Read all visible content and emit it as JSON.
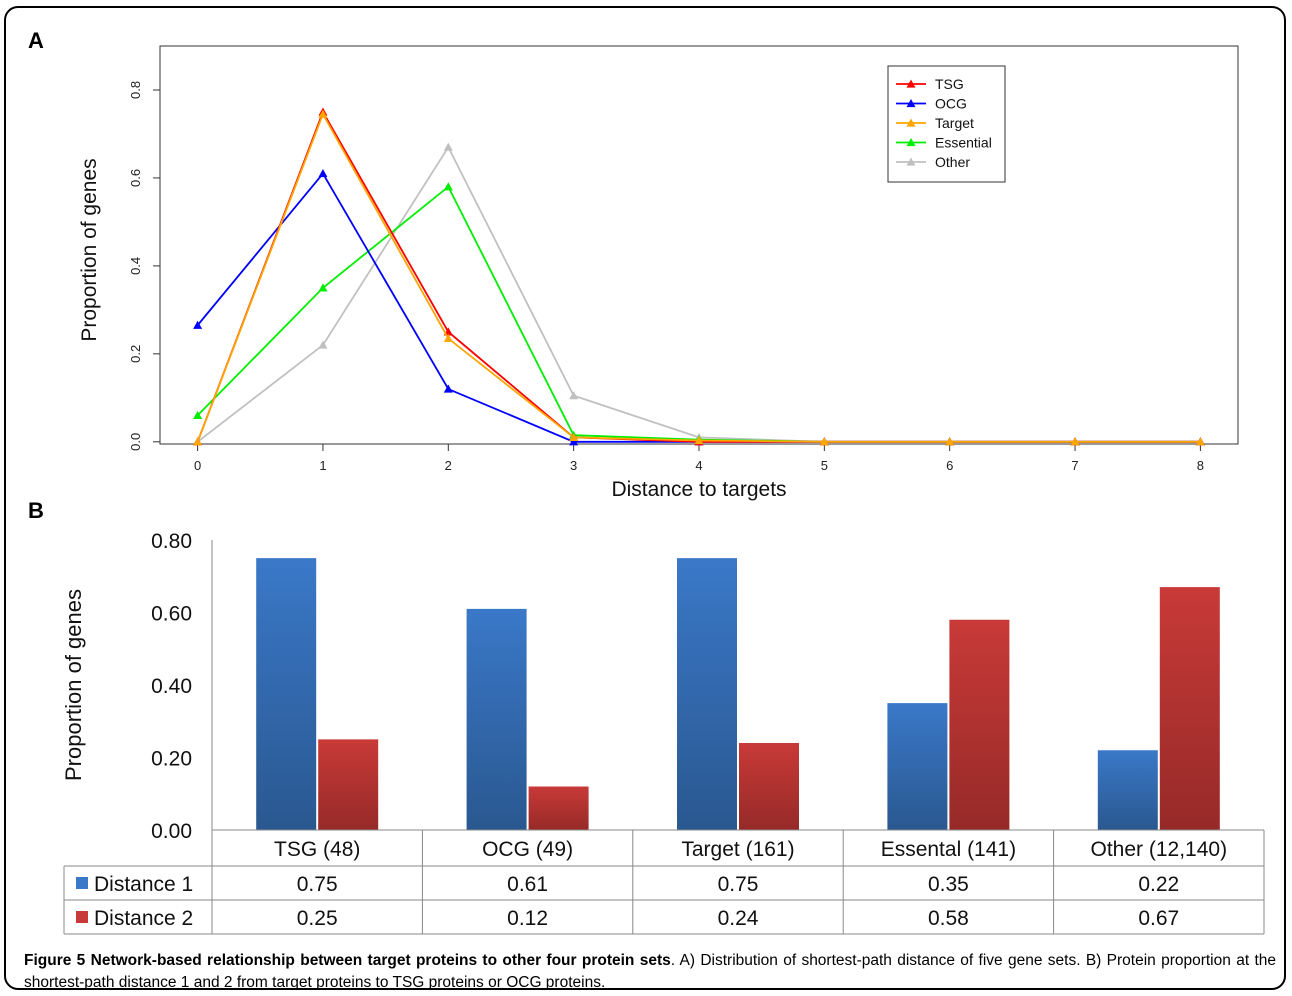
{
  "panel_a_letter": "A",
  "panel_b_letter": "B",
  "caption": {
    "title": "Figure 5 Network-based relationship between target proteins to other four protein sets",
    "text": ". A) Distribution of shortest-path distance of five gene sets. B) Protein proportion at the shortest-path distance 1 and 2 from target proteins to TSG proteins or OCG proteins."
  },
  "chart_data": [
    {
      "type": "line",
      "xlabel": "Distance to targets",
      "ylabel": "Proportion of genes",
      "x": [
        0,
        1,
        2,
        3,
        4,
        5,
        6,
        7,
        8
      ],
      "xticks": [
        "0",
        "1",
        "2",
        "3",
        "4",
        "5",
        "6",
        "7",
        "8"
      ],
      "yticks": [
        "0.0",
        "0.2",
        "0.4",
        "0.6",
        "0.8"
      ],
      "xlim": [
        -0.3,
        8.3
      ],
      "ylim": [
        -0.005,
        0.9
      ],
      "legend_position": "top-right",
      "series": [
        {
          "name": "TSG",
          "color": "#ff0000",
          "values": [
            0.0,
            0.75,
            0.25,
            0.01,
            0.0,
            0.0,
            0.0,
            0.0,
            0.0
          ]
        },
        {
          "name": "OCG",
          "color": "#0000ff",
          "values": [
            0.265,
            0.61,
            0.12,
            0.0,
            0.0,
            0.0,
            0.0,
            0.0,
            0.0
          ]
        },
        {
          "name": "Target",
          "color": "#ffa500",
          "values": [
            0.0,
            0.745,
            0.235,
            0.01,
            0.003,
            0.0,
            0.0,
            0.0,
            0.0
          ]
        },
        {
          "name": "Essential",
          "color": "#00ee00",
          "values": [
            0.06,
            0.35,
            0.58,
            0.015,
            0.005,
            0.0,
            0.0,
            0.0,
            0.0
          ]
        },
        {
          "name": "Other",
          "color": "#c0c0c0",
          "values": [
            0.0,
            0.22,
            0.67,
            0.105,
            0.01,
            0.0,
            0.0,
            0.0,
            0.0
          ]
        }
      ]
    },
    {
      "type": "bar",
      "ylabel": "Proportion of genes",
      "categories": [
        "TSG (48)",
        "OCG (49)",
        "Target (161)",
        "Essental (141)",
        "Other (12,140)"
      ],
      "yticks": [
        "0.00",
        "0.20",
        "0.40",
        "0.60",
        "0.80"
      ],
      "ylim": [
        0,
        0.8
      ],
      "series": [
        {
          "name": "Distance 1",
          "color": "#3a78c8",
          "values": [
            0.75,
            0.61,
            0.75,
            0.35,
            0.22
          ],
          "labels": [
            "0.75",
            "0.61",
            "0.75",
            "0.35",
            "0.22"
          ]
        },
        {
          "name": "Distance 2",
          "color": "#c83a38",
          "values": [
            0.25,
            0.12,
            0.24,
            0.58,
            0.67
          ],
          "labels": [
            "0.25",
            "0.12",
            "0.24",
            "0.58",
            "0.67"
          ]
        }
      ]
    }
  ]
}
